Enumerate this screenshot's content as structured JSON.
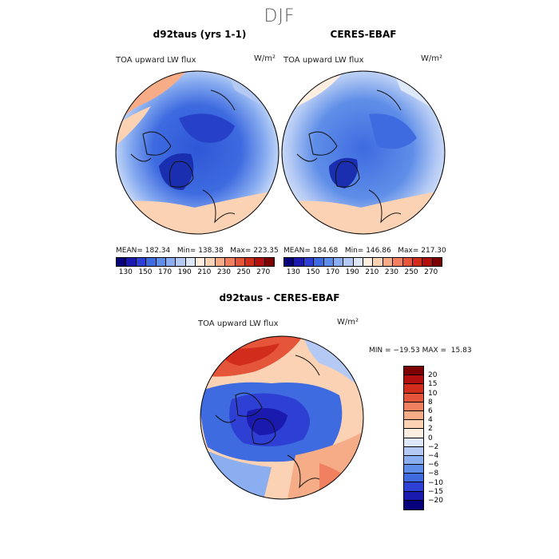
{
  "title": "DJF",
  "panels": [
    {
      "title": "d92taus (yrs 1-1)",
      "variable": "TOA upward LW flux",
      "units": "W/m²",
      "stats": "MEAN= 182.34   Min= 138.38   Max= 223.35"
    },
    {
      "title": "CERES-EBAF",
      "variable": "TOA upward LW flux",
      "units": "W/m²",
      "stats": "MEAN= 184.68   Min= 146.86   Max= 217.30"
    }
  ],
  "diff_panel": {
    "title": "d92taus - CERES-EBAF",
    "variable": "TOA upward LW flux",
    "units": "W/m²",
    "stats": "MIN = −19.53 MAX =  15.83"
  },
  "colorbar_top": {
    "ticks": [
      "130",
      "150",
      "170",
      "190",
      "210",
      "230",
      "250",
      "270"
    ],
    "colors": [
      "#08007a",
      "#1a1aae",
      "#2e3fd4",
      "#3e6be0",
      "#5f8ee8",
      "#8aaef0",
      "#b4caf4",
      "#dde8fa",
      "#fdeee0",
      "#fbd2b4",
      "#f6ad87",
      "#f08060",
      "#e5553a",
      "#d22d1c",
      "#b20f0f",
      "#7c0000"
    ]
  },
  "colorbar_diff": {
    "ticks": [
      "20",
      "15",
      "10",
      "8",
      "6",
      "4",
      "2",
      "0",
      "−2",
      "−4",
      "−6",
      "−8",
      "−10",
      "−15",
      "−20"
    ],
    "colors": [
      "#7c0000",
      "#b20f0f",
      "#d22d1c",
      "#e5553a",
      "#f08060",
      "#f6ad87",
      "#fbd2b4",
      "#fdeee0",
      "#dde8fa",
      "#b4caf4",
      "#8aaef0",
      "#5f8ee8",
      "#3e6be0",
      "#2e3fd4",
      "#1a1aae",
      "#08007a"
    ]
  }
}
